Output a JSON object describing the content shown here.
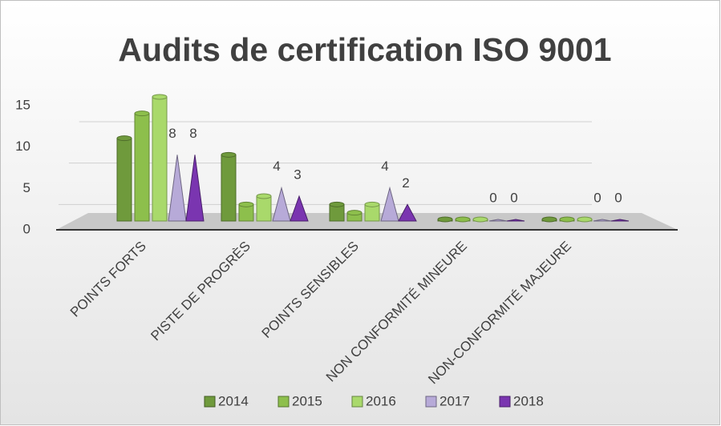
{
  "chart_data": {
    "type": "bar",
    "title": "Audits de certification ISO 9001",
    "categories": [
      "POINTS FORTS",
      "PISTE DE PROGRÈS",
      "POINTS SENSIBLES",
      "NON CONFORMITÉ MINEURE",
      "NON-CONFORMITÉ MAJEURE"
    ],
    "series": [
      {
        "name": "2014",
        "color": "#6f9a3c",
        "shape": "cylinder",
        "values": [
          10,
          8,
          2,
          0,
          0
        ]
      },
      {
        "name": "2015",
        "color": "#8dbf4c",
        "shape": "cylinder",
        "values": [
          13,
          2,
          1,
          0,
          0
        ]
      },
      {
        "name": "2016",
        "color": "#a9d96b",
        "shape": "cylinder",
        "values": [
          15,
          3,
          2,
          0,
          0
        ]
      },
      {
        "name": "2017",
        "color": "#b7aad8",
        "shape": "cone",
        "labels": true,
        "values": [
          8,
          4,
          4,
          0,
          0
        ]
      },
      {
        "name": "2018",
        "color": "#7a35b0",
        "shape": "cone",
        "labels": true,
        "values": [
          8,
          3,
          2,
          0,
          0
        ]
      }
    ],
    "ylim": [
      0,
      15
    ],
    "yticks": [
      0,
      5,
      10,
      15
    ],
    "grid": true,
    "legend": "bottom"
  }
}
